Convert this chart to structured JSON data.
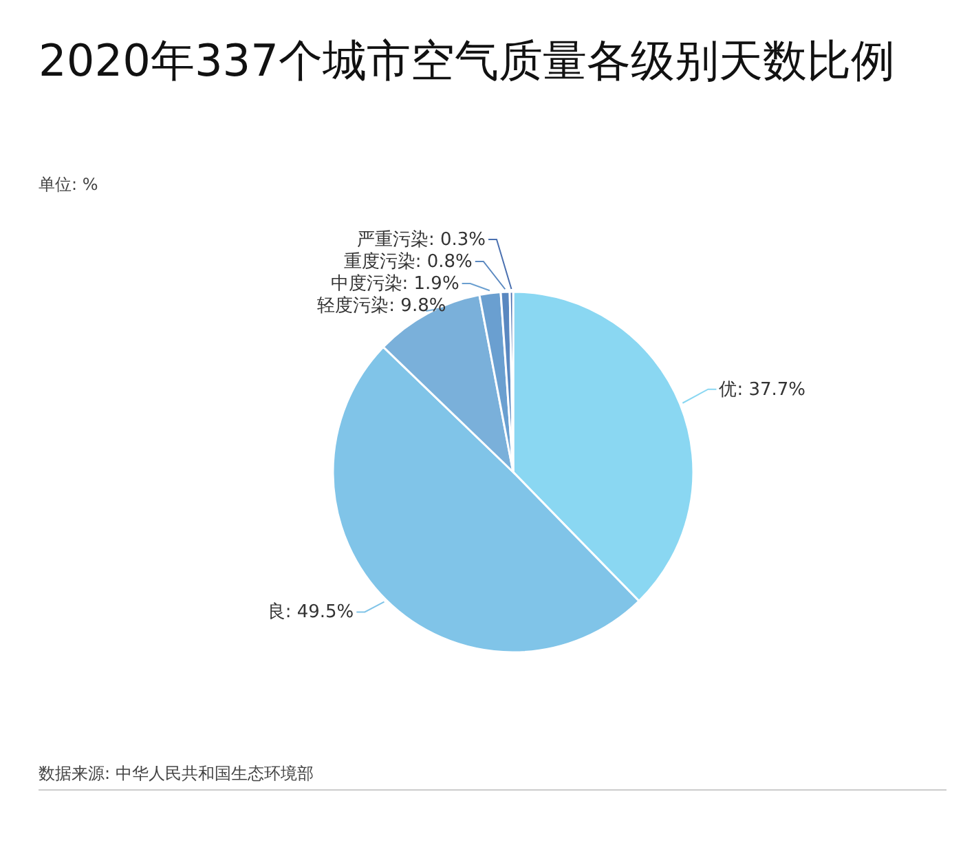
{
  "chart_data": {
    "type": "pie",
    "title": "2020年337个城市空气质量各级别天数比例",
    "subtitle": "单位: %",
    "categories": [
      "优",
      "良",
      "轻度污染",
      "中度污染",
      "重度污染",
      "严重污染"
    ],
    "values": [
      37.7,
      49.5,
      9.8,
      1.9,
      0.8,
      0.3
    ],
    "value_labels": [
      "37.7%",
      "49.5%",
      "9.8%",
      "1.9%",
      "0.8%",
      "0.3%"
    ],
    "colors": [
      "#8ad7f2",
      "#80c4e8",
      "#7ab0da",
      "#6a9fd0",
      "#5a88c0",
      "#4a70b0"
    ],
    "data_labels": true,
    "annotations": [
      "数据来源: 中华人民共和国生态环境部"
    ]
  }
}
